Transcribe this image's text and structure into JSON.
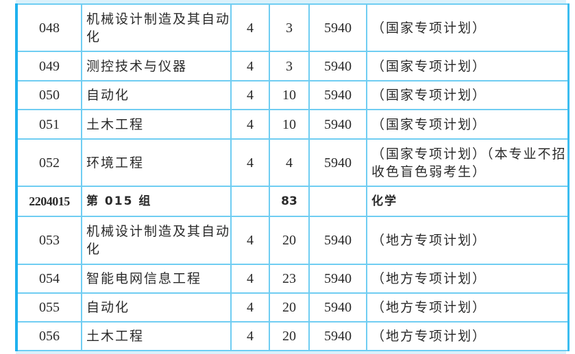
{
  "rows": [
    {
      "code": "048",
      "major": "机械设计制造及其自动化",
      "years": "4",
      "count": "3",
      "fee": "5940",
      "note": "（国家专项计划）"
    },
    {
      "code": "049",
      "major": "测控技术与仪器",
      "years": "4",
      "count": "3",
      "fee": "5940",
      "note": "（国家专项计划）"
    },
    {
      "code": "050",
      "major": "自动化",
      "years": "4",
      "count": "10",
      "fee": "5940",
      "note": "（国家专项计划）"
    },
    {
      "code": "051",
      "major": "土木工程",
      "years": "4",
      "count": "10",
      "fee": "5940",
      "note": "（国家专项计划）"
    },
    {
      "code": "052",
      "major": "环境工程",
      "years": "4",
      "count": "4",
      "fee": "5940",
      "note": "（国家专项计划）（本专业不招收色盲色弱考生）"
    },
    {
      "code": "2204015",
      "major": "第 015 组",
      "years": "",
      "count": "83",
      "fee": "",
      "note": "化学",
      "group": true
    },
    {
      "code": "053",
      "major": "机械设计制造及其自动化",
      "years": "4",
      "count": "20",
      "fee": "5940",
      "note": "（地方专项计划）"
    },
    {
      "code": "054",
      "major": "智能电网信息工程",
      "years": "4",
      "count": "23",
      "fee": "5940",
      "note": "（地方专项计划）"
    },
    {
      "code": "055",
      "major": "自动化",
      "years": "4",
      "count": "20",
      "fee": "5940",
      "note": "（地方专项计划）"
    },
    {
      "code": "056",
      "major": "土木工程",
      "years": "4",
      "count": "20",
      "fee": "5940",
      "note": "（地方专项计划）"
    }
  ]
}
